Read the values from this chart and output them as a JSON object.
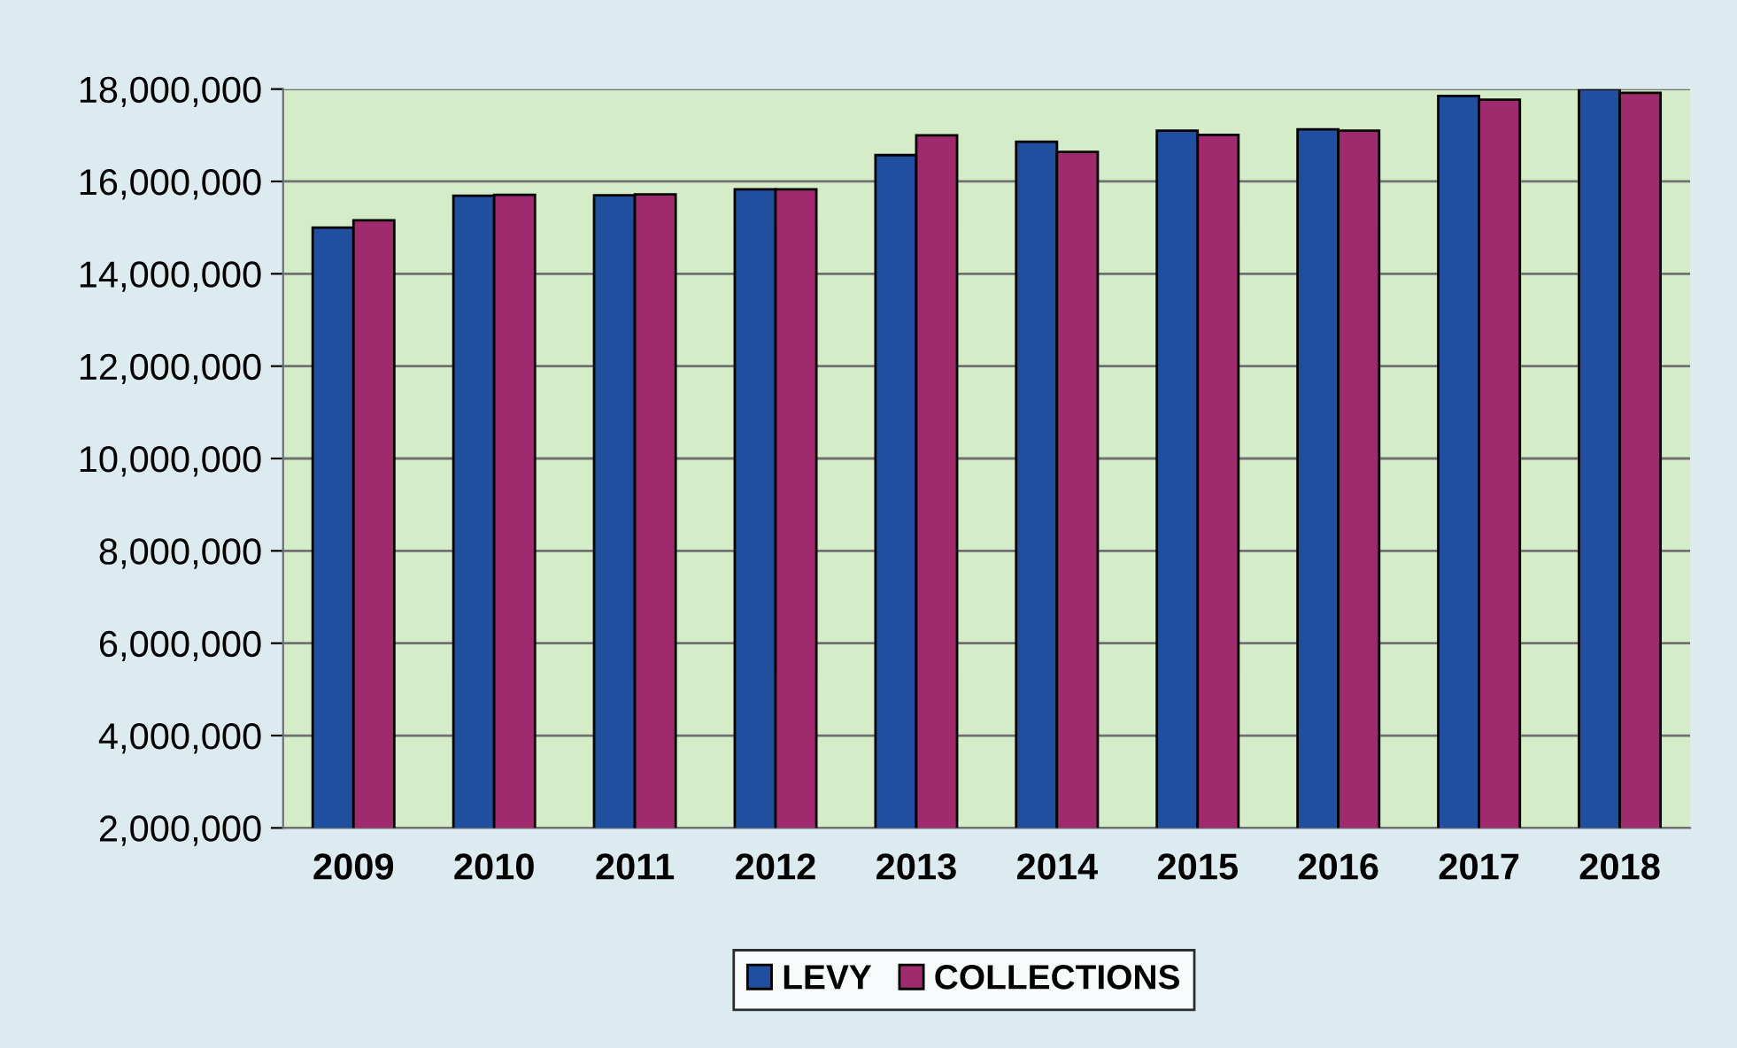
{
  "chart_data": {
    "type": "bar",
    "categories": [
      "2009",
      "2010",
      "2011",
      "2012",
      "2013",
      "2014",
      "2015",
      "2016",
      "2017",
      "2018"
    ],
    "series": [
      {
        "name": "LEVY",
        "color": "#1f4f9e",
        "values": [
          15000000,
          15690000,
          15700000,
          15830000,
          16570000,
          16860000,
          17100000,
          17130000,
          17850000,
          18000000
        ]
      },
      {
        "name": "COLLECTIONS",
        "color": "#a02a6e",
        "values": [
          15160000,
          15710000,
          15720000,
          15830000,
          17000000,
          16640000,
          17010000,
          17100000,
          17770000,
          17920000
        ]
      }
    ],
    "ylim": [
      2000000,
      18000000
    ],
    "yticks": [
      {
        "value": 2000000,
        "label": "2,000,000"
      },
      {
        "value": 4000000,
        "label": "4,000,000"
      },
      {
        "value": 6000000,
        "label": "6,000,000"
      },
      {
        "value": 8000000,
        "label": "8,000,000"
      },
      {
        "value": 10000000,
        "label": "10,000,000"
      },
      {
        "value": 12000000,
        "label": "12,000,000"
      },
      {
        "value": 14000000,
        "label": "14,000,000"
      },
      {
        "value": 16000000,
        "label": "16,000,000"
      },
      {
        "value": 18000000,
        "label": "18,000,000"
      }
    ],
    "grid": "y",
    "legend": "bottom"
  }
}
